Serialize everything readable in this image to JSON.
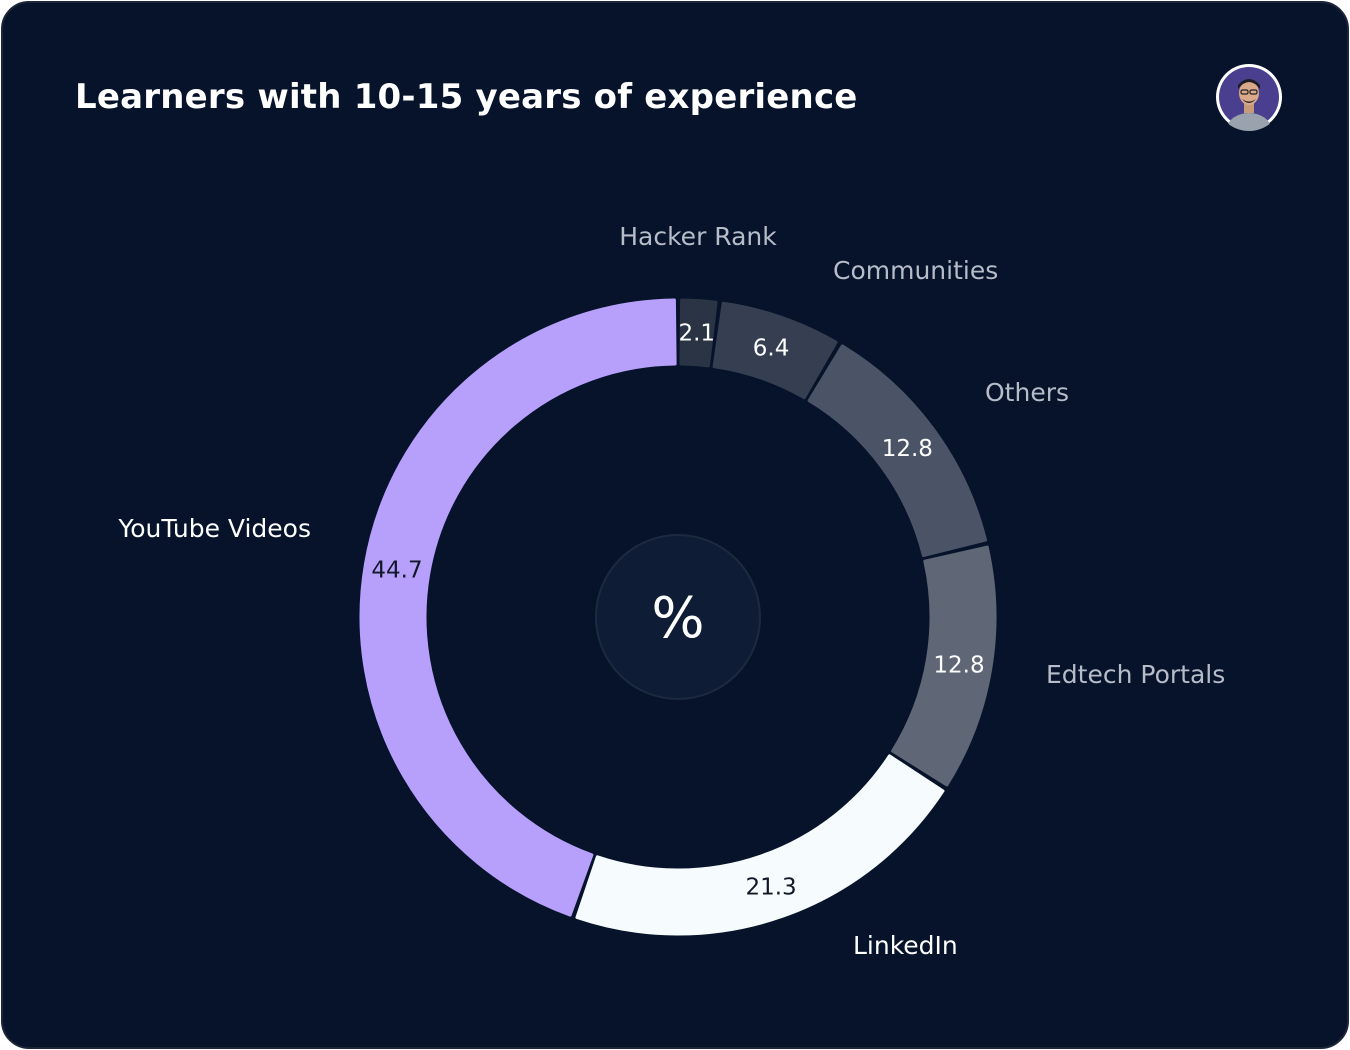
{
  "header": {
    "title": "Learners with 10-15 years of experience",
    "avatar_icon": "user-avatar-icon"
  },
  "center": {
    "symbol": "%"
  },
  "colors": {
    "background": "#06132a",
    "center_circle": "#0e1d35",
    "label_muted": "#b6bcc8",
    "label_bright": "#ffffff"
  },
  "chart_data": {
    "type": "pie",
    "style": "donut",
    "title": "Learners with 10-15 years of experience",
    "unit": "%",
    "slices": [
      {
        "name": "Hacker Rank",
        "value": 2.1,
        "color": "#2a3445",
        "value_color": "#ffffff",
        "label_color": "#b6bcc8"
      },
      {
        "name": "Communities",
        "value": 6.4,
        "color": "#363f51",
        "value_color": "#ffffff",
        "label_color": "#b6bcc8"
      },
      {
        "name": "Others",
        "value": 12.8,
        "color": "#4b5467",
        "value_color": "#ffffff",
        "label_color": "#b6bcc8"
      },
      {
        "name": "Edtech Portals",
        "value": 12.8,
        "color": "#5f6776",
        "value_color": "#ffffff",
        "label_color": "#b6bcc8"
      },
      {
        "name": "LinkedIn",
        "value": 21.3,
        "color": "#f6fbfd",
        "value_color": "#111827",
        "label_color": "#ffffff"
      },
      {
        "name": "YouTube Videos",
        "value": 44.7,
        "color": "#b6a0fc",
        "value_color": "#111827",
        "label_color": "#ffffff"
      }
    ]
  }
}
